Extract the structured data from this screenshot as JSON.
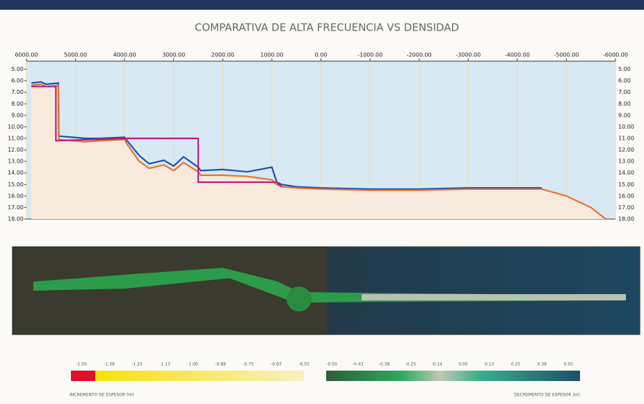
{
  "chart_data": {
    "type": "line",
    "title": "COMPARATIVA DE ALTA FRECUENCIA VS DENSIDAD",
    "xlim": [
      6000,
      -6000
    ],
    "xticks": [
      {
        "value": 6000,
        "label": "6000.00"
      },
      {
        "value": 5000,
        "label": "5000.00"
      },
      {
        "value": 4000,
        "label": "4000.00"
      },
      {
        "value": 3000,
        "label": "3000.00"
      },
      {
        "value": 2000,
        "label": "2000.00"
      },
      {
        "value": 1000,
        "label": "1000.00"
      },
      {
        "value": 0,
        "label": "0.00"
      },
      {
        "value": -1000,
        "label": "-1000.00"
      },
      {
        "value": -2000,
        "label": "-2000.00"
      },
      {
        "value": -3000,
        "label": "-3000.00"
      },
      {
        "value": -4000,
        "label": "-4000.00"
      },
      {
        "value": -5000,
        "label": "-5000.00"
      },
      {
        "value": -6000,
        "label": "-6000.00"
      }
    ],
    "ylim": [
      4.3,
      18
    ],
    "yticks": [
      {
        "value": 5,
        "label": "5.00"
      },
      {
        "value": 6,
        "label": "6.00"
      },
      {
        "value": 7,
        "label": "7.00"
      },
      {
        "value": 8,
        "label": "8.00"
      },
      {
        "value": 9,
        "label": "9.00"
      },
      {
        "value": 10,
        "label": "10.00"
      },
      {
        "value": 11,
        "label": "11.00"
      },
      {
        "value": 12,
        "label": "12.00"
      },
      {
        "value": 13,
        "label": "13.00"
      },
      {
        "value": 14,
        "label": "14.00"
      },
      {
        "value": 15,
        "label": "15.00"
      },
      {
        "value": 16,
        "label": "16.00"
      },
      {
        "value": 17,
        "label": "17.00"
      },
      {
        "value": 18,
        "label": "18.00"
      }
    ],
    "series": [
      {
        "color": "#1f4fb0",
        "x": [
          5900,
          5700,
          5600,
          5350,
          5340,
          4800,
          4500,
          4000,
          3950,
          3700,
          3500,
          3200,
          3000,
          2800,
          2500,
          2450,
          2000,
          1500,
          1000,
          900,
          800,
          500,
          0,
          -1000,
          -2000,
          -3000,
          -4000,
          -4500
        ],
        "values": [
          6.2,
          6.1,
          6.3,
          6.2,
          10.8,
          11.0,
          11.0,
          10.9,
          11.2,
          12.5,
          13.2,
          12.9,
          13.4,
          12.6,
          13.5,
          13.8,
          13.7,
          13.9,
          13.5,
          14.8,
          15.0,
          15.2,
          15.3,
          15.4,
          15.4,
          15.3,
          15.3,
          15.3
        ]
      },
      {
        "color": "#e8702a",
        "x": [
          5900,
          5700,
          5600,
          5350,
          5340,
          4800,
          4500,
          4000,
          3950,
          3700,
          3500,
          3200,
          3000,
          2800,
          2500,
          2450,
          2000,
          1500,
          1000,
          900,
          800,
          500,
          0,
          -1000,
          -2000,
          -3000,
          -4000,
          -4500,
          -5000,
          -5500,
          -5800
        ],
        "values": [
          6.4,
          6.3,
          6.5,
          6.4,
          11.1,
          11.3,
          11.2,
          11.1,
          11.5,
          13.0,
          13.6,
          13.3,
          13.8,
          13.1,
          13.9,
          14.2,
          14.2,
          14.3,
          14.6,
          15.0,
          15.2,
          15.3,
          15.4,
          15.5,
          15.5,
          15.4,
          15.4,
          15.4,
          16.0,
          17.0,
          18.0
        ]
      },
      {
        "color": "#c2187a",
        "x": [
          5900,
          5400,
          5400,
          3900,
          2500,
          2500,
          900,
          800
        ],
        "values": [
          6.5,
          6.5,
          11.2,
          11.0,
          11.0,
          14.8,
          14.8,
          15.2
        ]
      }
    ],
    "colorbar": {
      "increase_labels": [
        "-1.50",
        "-1.38",
        "-1.25",
        "-1.13",
        "-1.00",
        "-0.88",
        "-0.75",
        "-0.63",
        "-0.50"
      ],
      "decrease_labels": [
        "-0.50",
        "-0.43",
        "-0.38",
        "-0.25",
        "-0.14",
        "0.00",
        "0.13",
        "0.25",
        "0.38",
        "0.50"
      ],
      "increase_title": "INCREMENTO DE ESPESOR (m)",
      "decrease_title": "DECREMENTO DE ESPESOR (m)"
    }
  }
}
